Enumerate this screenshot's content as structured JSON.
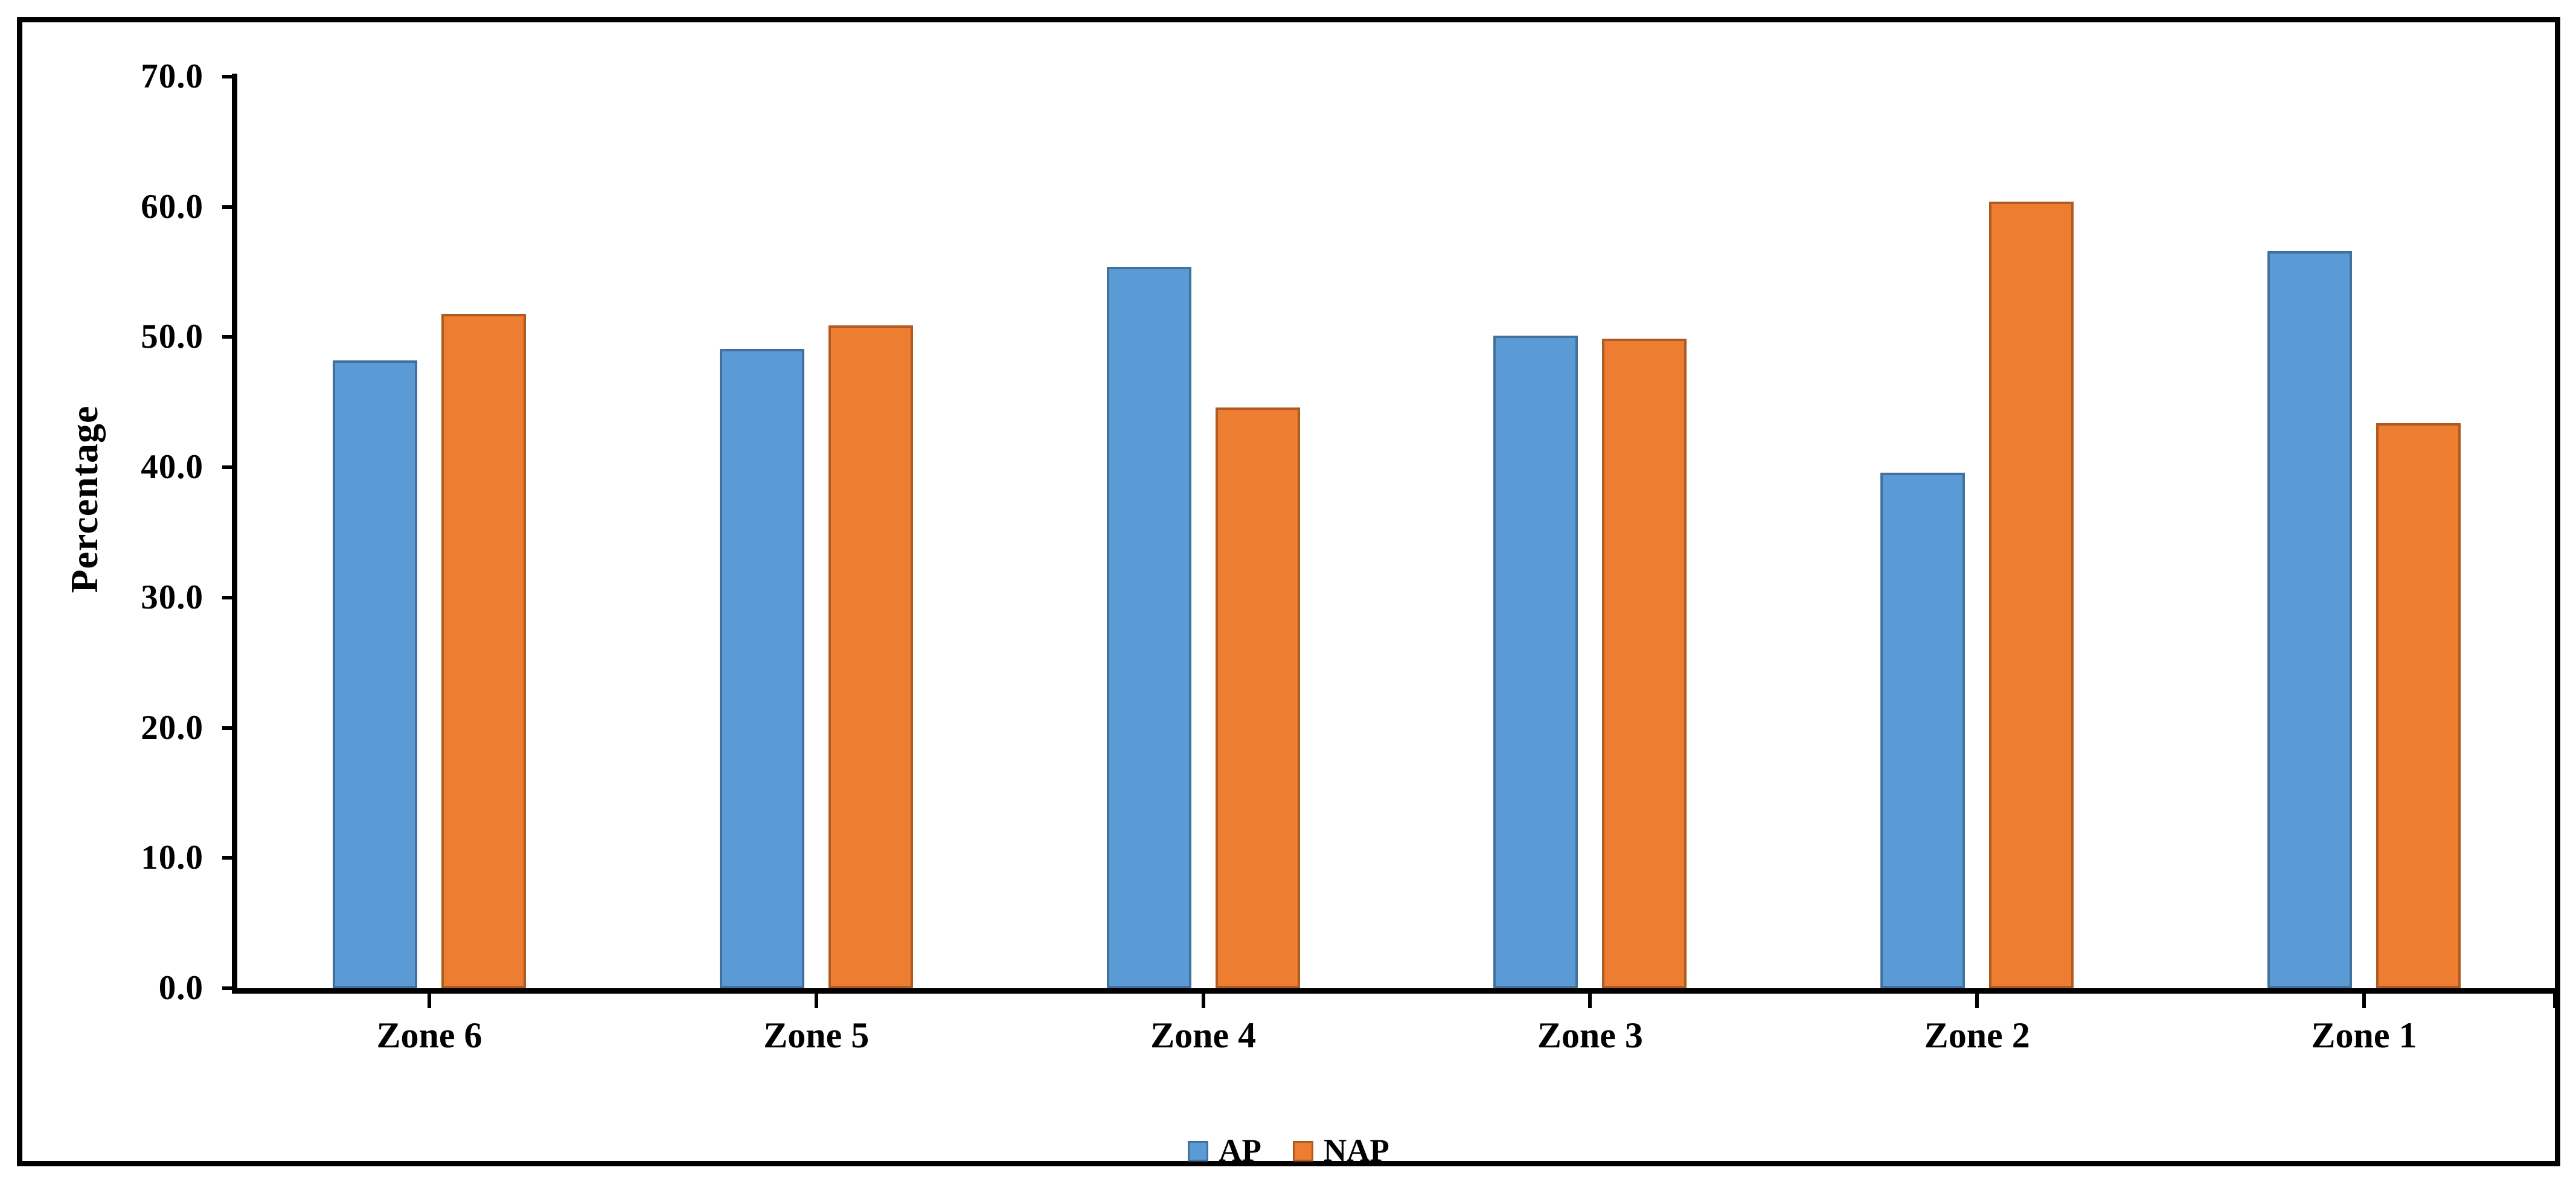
{
  "figure": {
    "background": "#ffffff",
    "border_color": "#000000"
  },
  "chart_data": {
    "type": "bar",
    "title": "",
    "categories": [
      "Zone 6",
      "Zone 5",
      "Zone 4",
      "Zone 3",
      "Zone 2",
      "Zone 1"
    ],
    "series": [
      {
        "name": "AP",
        "color": "#5B9BD5",
        "border_color": "#41719C",
        "values": [
          48.2,
          49.1,
          55.4,
          50.1,
          39.6,
          56.6
        ]
      },
      {
        "name": "NAP",
        "color": "#ED7D31",
        "border_color": "#AE5A21",
        "values": [
          51.8,
          50.9,
          44.6,
          49.9,
          60.4,
          43.4
        ]
      }
    ],
    "xlabel": "",
    "ylabel": "Percentage",
    "ylim": [
      0,
      70
    ],
    "ytick_labels": [
      "0.0",
      "10.0",
      "20.0",
      "30.0",
      "40.0",
      "50.0",
      "60.0",
      "70.0"
    ],
    "grid": false,
    "legend_position": "bottom",
    "bar_orientation": "vertical"
  },
  "legend": {
    "items": [
      {
        "label": "AP"
      },
      {
        "label": "NAP"
      }
    ]
  }
}
